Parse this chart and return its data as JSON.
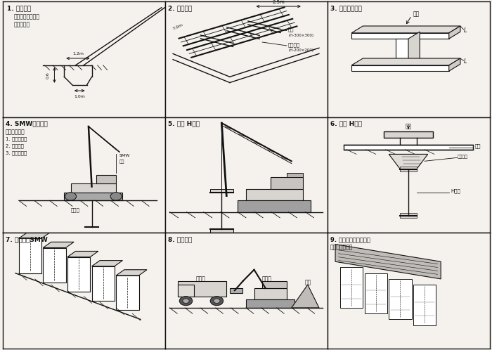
{
  "bg_color": "#f5f2ee",
  "line_color": "#111111",
  "panels": [
    {
      "num": "1",
      "title": "1. 导沟开挖",
      "sub1": "确定是否有障碍物",
      "sub2": "及做泥水沟"
    },
    {
      "num": "2",
      "title": "2. 置放导轨"
    },
    {
      "num": "3",
      "title": "3. 设定施工标志"
    },
    {
      "num": "4",
      "title": "4. SMW钓撞摔拌",
      "sub0": "钓撞摔拌程序",
      "sub1": "1. 钓撞及摔拌",
      "sub2": "2. 置复摔拌",
      "sub3": "3. 拉上时摔拌"
    },
    {
      "num": "5",
      "title": "5. 置放 H型钓"
    },
    {
      "num": "6",
      "title": "6. 固定 H型钓"
    },
    {
      "num": "7",
      "title": "7. 施工完成SMW"
    },
    {
      "num": "8",
      "title": "8. 废土运输"
    },
    {
      "num": "9",
      "title": "9. 型钓顶端连结架施工",
      "sub1": "浇筑钓筋混凝土"
    }
  ]
}
